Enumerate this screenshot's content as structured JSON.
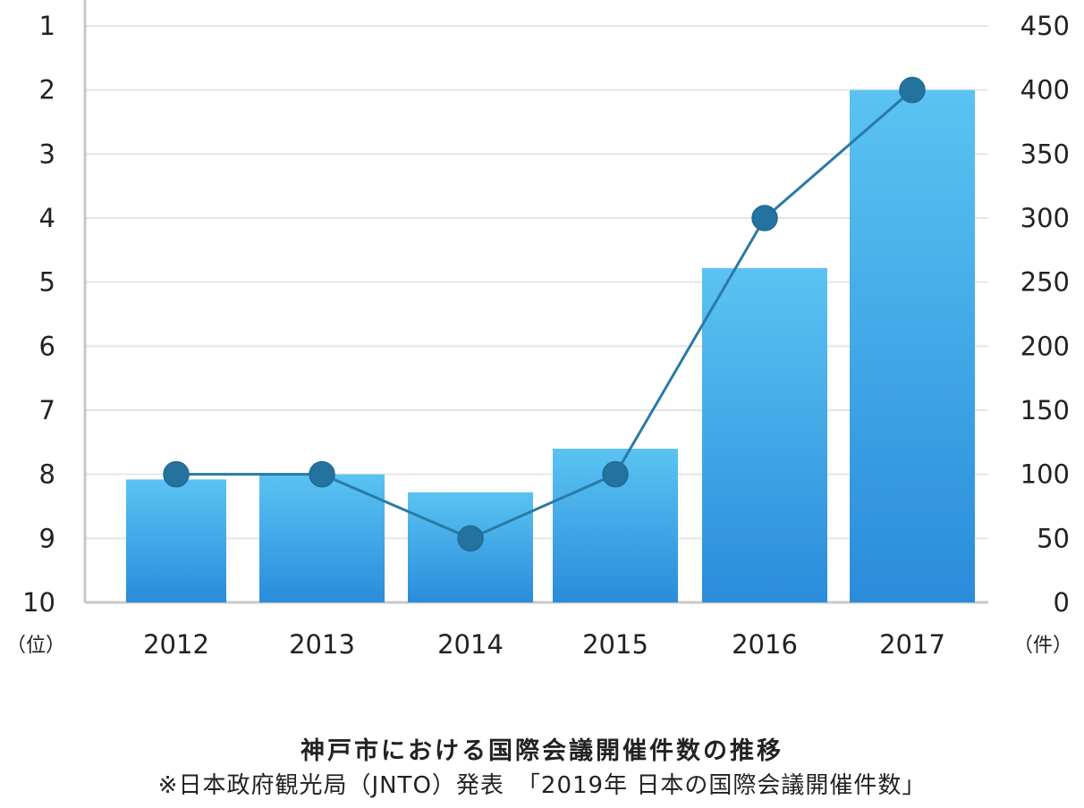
{
  "chart_data": {
    "type": "bar",
    "title": "神戸市における国際会議開催件数の推移",
    "source": "※日本政府観光局（JNTO）発表　「2019年 日本の国際会議開催件数」",
    "categories": [
      "2012",
      "2013",
      "2014",
      "2015",
      "2016",
      "2017"
    ],
    "series": [
      {
        "type": "bar",
        "axis": "right",
        "values": [
          96,
          100,
          86,
          120,
          261,
          400
        ]
      },
      {
        "type": "line",
        "axis": "left",
        "values": [
          8,
          8,
          9,
          8,
          4,
          2
        ]
      }
    ],
    "left_axis": {
      "ticks": [
        "1",
        "2",
        "3",
        "4",
        "5",
        "6",
        "7",
        "8",
        "9",
        "10"
      ],
      "unit": "（位）",
      "range": [
        1,
        10
      ],
      "reversed": true
    },
    "right_axis": {
      "ticks": [
        "0",
        "50",
        "100",
        "150",
        "200",
        "250",
        "300",
        "350",
        "400",
        "450"
      ],
      "unit": "（件）",
      "range": [
        0,
        450
      ]
    },
    "grid": true,
    "colors": {
      "bar_top": "#5bc3f2",
      "bar_bottom": "#2a8cdb",
      "line": "#2a7aa5",
      "marker": "#24739f",
      "grid": "#e6e6e6",
      "axis": "#c8c8c8"
    }
  }
}
